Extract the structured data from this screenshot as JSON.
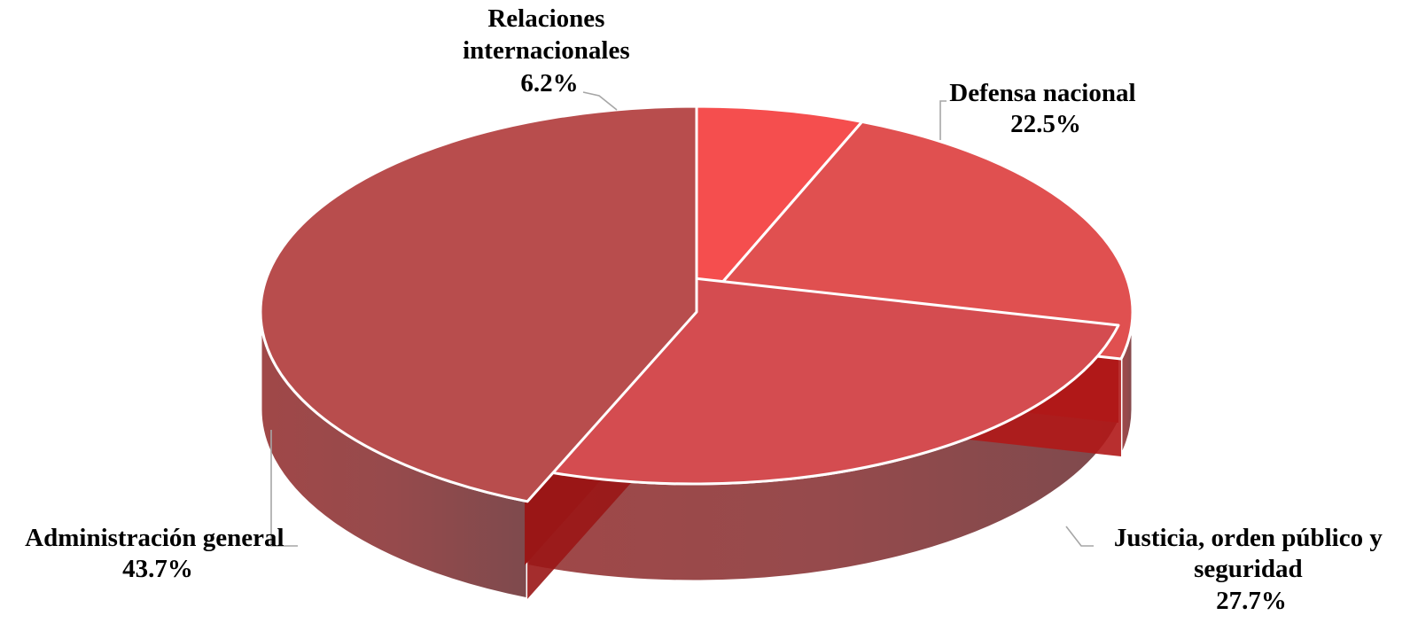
{
  "chart_data": {
    "type": "pie",
    "title": "",
    "slices": [
      {
        "label": [
          "Relaciones",
          "internacionales"
        ],
        "value": 6.2,
        "value_label": "6.2%",
        "color": "#f54e4e"
      },
      {
        "label": [
          "Defensa nacional"
        ],
        "value": 22.5,
        "value_label": "22.5%",
        "color": "#e05050"
      },
      {
        "label": [
          "Justicia, orden público y",
          "seguridad"
        ],
        "value": 27.7,
        "value_label": "27.7%",
        "color": "#d44c50"
      },
      {
        "label": [
          "Administración general"
        ],
        "value": 43.7,
        "value_label": "43.7%",
        "color": "#b84d4d"
      }
    ],
    "style": "3d-exploded",
    "exploded_slice": "Justicia, orden público y seguridad"
  }
}
